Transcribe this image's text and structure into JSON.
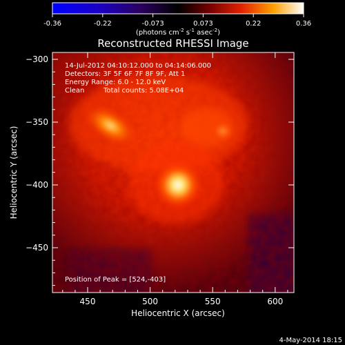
{
  "colorbar": {
    "ticks": [
      "-0.36",
      "-0.22",
      "-0.073",
      "0.073",
      "0.22",
      "0.36"
    ],
    "units_prefix": "(photons cm",
    "units_exp1": "-2",
    "units_mid": " s",
    "units_exp2": "-1",
    "units_mid2": " asec",
    "units_exp3": "-2",
    "units_suffix": ")"
  },
  "plot": {
    "title": "Reconstructed RHESSI Image",
    "xlabel": "Heliocentric X (arcsec)",
    "ylabel": "Heliocentric Y (arcsec)",
    "xticks": [
      "450",
      "500",
      "550",
      "600"
    ],
    "yticks": [
      "−300",
      "−350",
      "−400",
      "−450"
    ],
    "info": {
      "time_range": "14-Jul-2012 04:10:12.000 to 04:14:06.000",
      "detectors": "Detectors: 3F 5F 6F 7F 8F 9F, Att 1",
      "energy": "Energy Range: 6.0 - 12.0 keV",
      "method": "Clean",
      "counts": "Total counts: 5.08E+04"
    },
    "peak": "Position of Peak = [524,-403]"
  },
  "footer_date": "4-May-2014 18:15",
  "image_data": {
    "x_range": [
      421,
      611
    ],
    "y_range": [
      -487,
      -294
    ],
    "sources": [
      {
        "x": 524,
        "y": -403,
        "relative_intensity": 1.0
      },
      {
        "x": 466,
        "y": -352,
        "relative_intensity": 0.8
      },
      {
        "x": 558,
        "y": -358,
        "relative_intensity": 0.5
      }
    ]
  }
}
